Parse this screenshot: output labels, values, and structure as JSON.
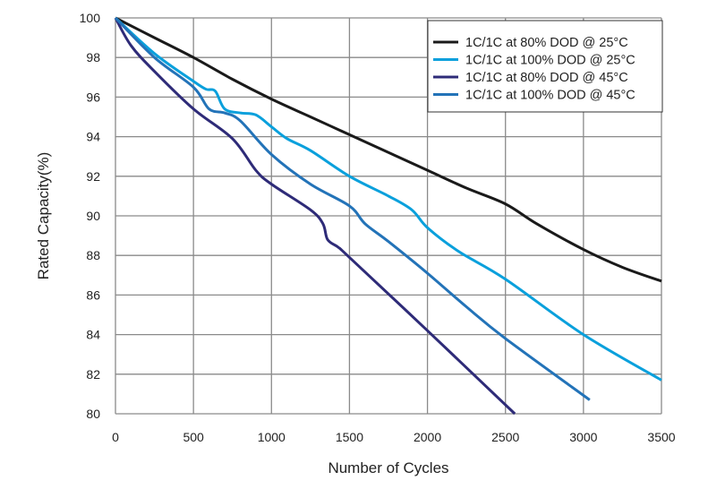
{
  "chart_data": {
    "type": "line",
    "xlabel": "Number of Cycles",
    "ylabel": "Rated Capacity(%)",
    "xlim": [
      0,
      3500
    ],
    "ylim": [
      80,
      100
    ],
    "xticks": [
      0,
      500,
      1000,
      1500,
      2000,
      2500,
      3000,
      3500
    ],
    "yticks": [
      80,
      82,
      84,
      86,
      88,
      90,
      92,
      94,
      96,
      98,
      100
    ],
    "grid": true,
    "legend": "top-right",
    "series": [
      {
        "name": "1C/1C at 80% DOD @ 25°C",
        "color": "#1a1a1a",
        "points": [
          [
            0,
            100
          ],
          [
            250,
            99
          ],
          [
            500,
            98.0
          ],
          [
            750,
            96.9
          ],
          [
            1000,
            95.9
          ],
          [
            1250,
            95.0
          ],
          [
            1500,
            94.1
          ],
          [
            1750,
            93.2
          ],
          [
            2000,
            92.3
          ],
          [
            2250,
            91.4
          ],
          [
            2500,
            90.6
          ],
          [
            2700,
            89.6
          ],
          [
            3000,
            88.3
          ],
          [
            3250,
            87.4
          ],
          [
            3500,
            86.7
          ]
        ]
      },
      {
        "name": "1C/1C at 100% DOD @ 25°C",
        "color": "#0aa0dc",
        "points": [
          [
            0,
            100
          ],
          [
            250,
            98.2
          ],
          [
            500,
            96.8
          ],
          [
            580,
            96.4
          ],
          [
            640,
            96.3
          ],
          [
            700,
            95.4
          ],
          [
            800,
            95.2
          ],
          [
            900,
            95.1
          ],
          [
            1000,
            94.5
          ],
          [
            1100,
            93.9
          ],
          [
            1250,
            93.3
          ],
          [
            1500,
            92.0
          ],
          [
            1750,
            91.0
          ],
          [
            1900,
            90.3
          ],
          [
            2000,
            89.4
          ],
          [
            2200,
            88.2
          ],
          [
            2500,
            86.8
          ],
          [
            3000,
            84.0
          ],
          [
            3500,
            81.7
          ]
        ]
      },
      {
        "name": "1C/1C at 80% DOD @ 45°C",
        "color": "#2e2b78",
        "points": [
          [
            0,
            100
          ],
          [
            100,
            98.6
          ],
          [
            250,
            97.3
          ],
          [
            500,
            95.4
          ],
          [
            750,
            93.9
          ],
          [
            900,
            92.3
          ],
          [
            1000,
            91.6
          ],
          [
            1250,
            90.3
          ],
          [
            1330,
            89.6
          ],
          [
            1360,
            88.8
          ],
          [
            1430,
            88.4
          ],
          [
            1500,
            87.9
          ],
          [
            2000,
            84.2
          ],
          [
            2560,
            80.0
          ]
        ]
      },
      {
        "name": "1C/1C at 100% DOD @ 45°C",
        "color": "#2373b8",
        "points": [
          [
            0,
            100
          ],
          [
            250,
            98.0
          ],
          [
            500,
            96.5
          ],
          [
            600,
            95.4
          ],
          [
            700,
            95.2
          ],
          [
            800,
            94.8
          ],
          [
            1000,
            93.1
          ],
          [
            1250,
            91.6
          ],
          [
            1500,
            90.5
          ],
          [
            1600,
            89.6
          ],
          [
            1750,
            88.7
          ],
          [
            2000,
            87.1
          ],
          [
            2250,
            85.4
          ],
          [
            2500,
            83.8
          ],
          [
            3040,
            80.7
          ]
        ]
      }
    ]
  }
}
